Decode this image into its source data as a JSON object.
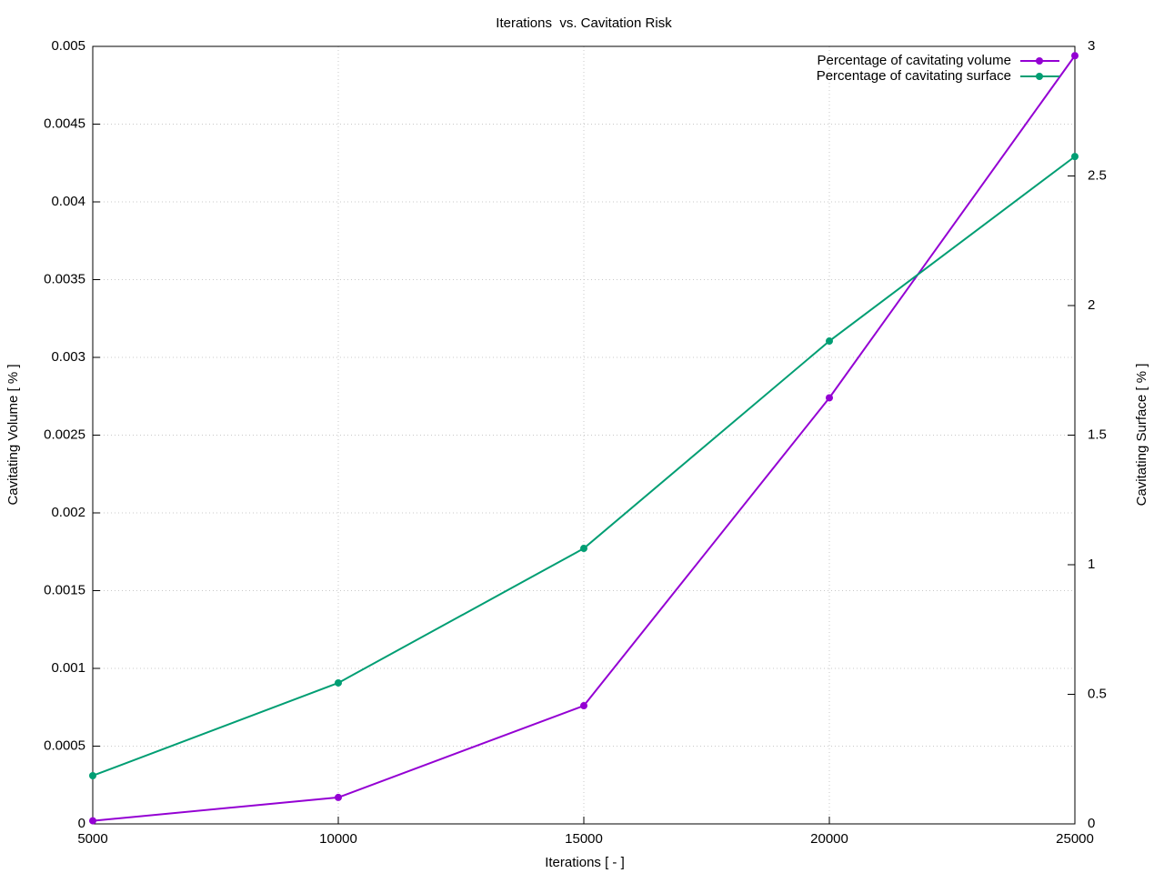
{
  "chart_data": {
    "type": "line",
    "title": "Iterations  vs. Cavitation Risk",
    "x_label": "Iterations [ - ]",
    "y_label": "Cavitating Volume [ % ]",
    "y2_label": "Cavitating Surface [ % ]",
    "x": [
      5000,
      10000,
      15000,
      20000,
      25000
    ],
    "series": [
      {
        "name": "Percentage of cavitating volume",
        "color": "#9400d3",
        "values": [
          2e-05,
          0.00017,
          0.00076,
          0.00274,
          0.00494
        ]
      },
      {
        "name": "Percentage of cavitating surface",
        "color": "#009e73",
        "axis": "y2",
        "values": [
          0.186,
          0.544,
          1.063,
          1.863,
          2.575
        ]
      }
    ],
    "xlim": [
      5000,
      25000
    ],
    "xticks": [
      5000,
      10000,
      15000,
      20000,
      25000
    ],
    "ylim": [
      0,
      0.005
    ],
    "yticks": [
      0,
      0.0005,
      0.001,
      0.0015,
      0.002,
      0.0025,
      0.003,
      0.0035,
      0.004,
      0.0045,
      0.005
    ],
    "y2lim": [
      0,
      3
    ],
    "y2ticks": [
      0,
      0.5,
      1,
      1.5,
      2,
      2.5,
      3
    ],
    "grid": true,
    "legend": "top-right"
  }
}
